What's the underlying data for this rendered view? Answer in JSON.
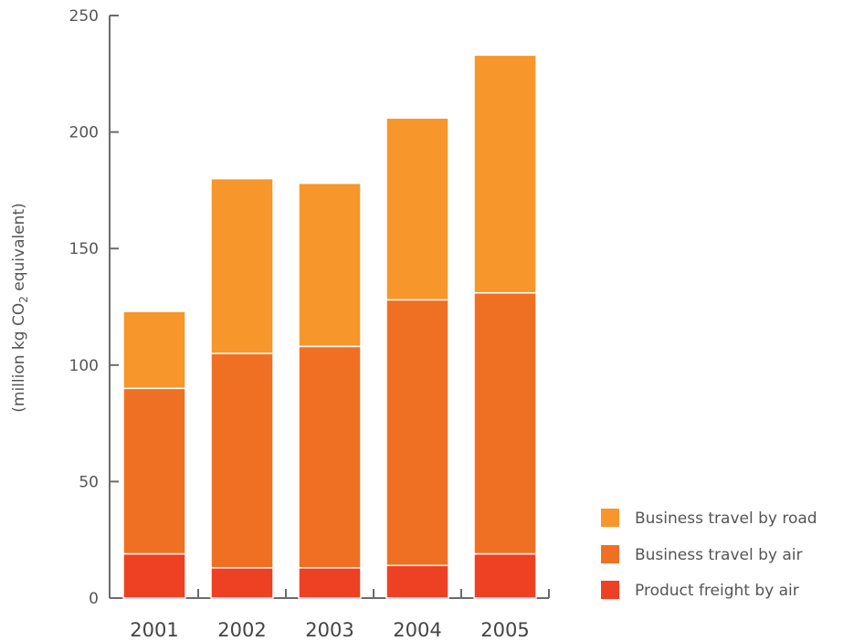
{
  "chart_data": {
    "type": "bar",
    "stacked": true,
    "categories": [
      "2001",
      "2002",
      "2003",
      "2004",
      "2005"
    ],
    "series": [
      {
        "name": "Product freight by air",
        "color": "#ee4023",
        "values": [
          19,
          13,
          13,
          14,
          19
        ]
      },
      {
        "name": "Business travel by air",
        "color": "#f07023",
        "values": [
          71,
          92,
          95,
          114,
          112
        ]
      },
      {
        "name": "Business travel by road",
        "color": "#f7962a",
        "values": [
          33,
          75,
          70,
          78,
          102
        ]
      }
    ],
    "ylabel_parts": [
      "(million kg CO",
      "2",
      " equivalent)"
    ],
    "ylim": [
      0,
      250
    ],
    "yticks": [
      "0",
      "50",
      "100",
      "150",
      "200",
      "250"
    ],
    "legend_order": [
      "Business travel by road",
      "Business travel by air",
      "Product freight by air"
    ],
    "legend_position": "bottom-right",
    "grid": false
  }
}
